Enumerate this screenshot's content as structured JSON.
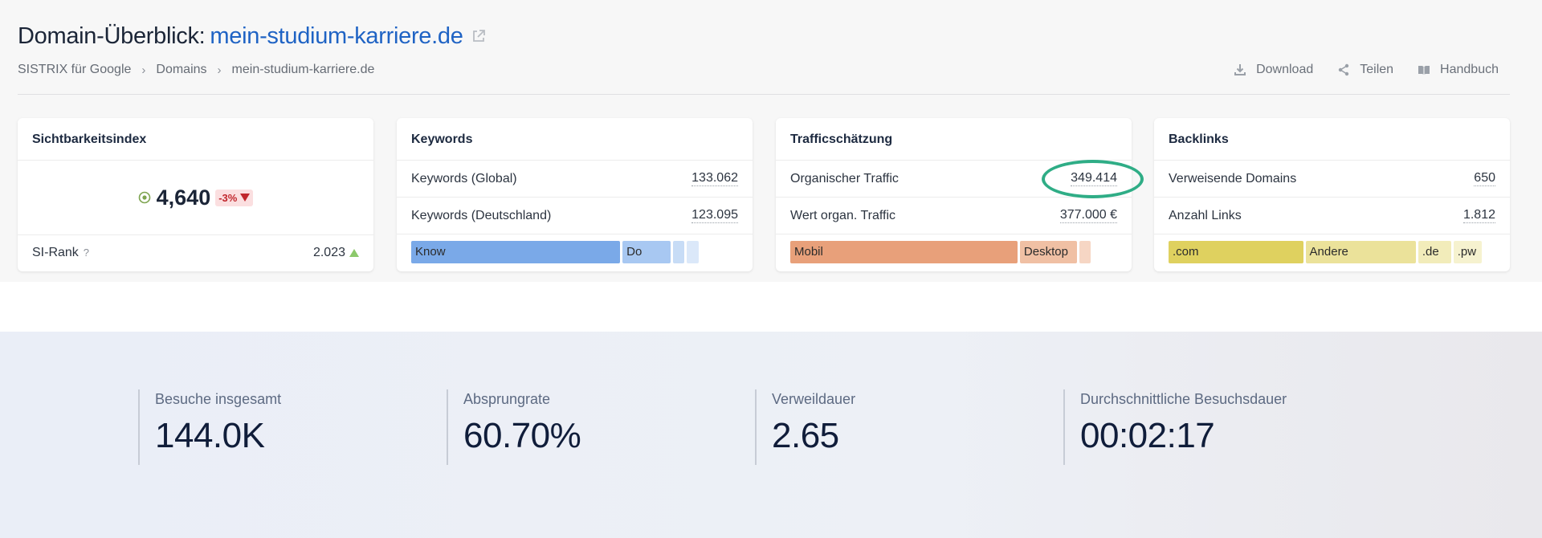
{
  "header": {
    "title_prefix": "Domain-Überblick:",
    "title_domain": "mein-studium-karriere.de"
  },
  "breadcrumb": [
    "SISTRIX für Google",
    "Domains",
    "mein-studium-karriere.de"
  ],
  "actions": {
    "download": "Download",
    "share": "Teilen",
    "handbook": "Handbuch"
  },
  "cards": {
    "sichtbarkeit": {
      "title": "Sichtbarkeitsindex",
      "value": "4,640",
      "change": "-3%",
      "rank_label": "SI-Rank",
      "rank_help": "?",
      "rank_value": "2.023"
    },
    "keywords": {
      "title": "Keywords",
      "rows": [
        {
          "label": "Keywords (Global)",
          "value": "133.062"
        },
        {
          "label": "Keywords (Deutschland)",
          "value": "123.095"
        }
      ],
      "bar": [
        {
          "label": "Know",
          "share": 0.675,
          "color": "#7aa9e8"
        },
        {
          "label": "Do",
          "share": 0.145,
          "color": "#a8c8f2"
        },
        {
          "label": "",
          "share": 0.025,
          "color": "#c7dcf6"
        },
        {
          "label": "",
          "share": 0.025,
          "color": "#dbe8f9"
        }
      ]
    },
    "traffic": {
      "title": "Trafficschätzung",
      "rows": [
        {
          "label": "Organischer Traffic",
          "value": "349.414"
        },
        {
          "label": "Wert organ. Traffic",
          "value": "377.000 €"
        }
      ],
      "bar": [
        {
          "label": "Mobil",
          "share": 0.72,
          "color": "#e8a07a"
        },
        {
          "label": "Desktop",
          "share": 0.17,
          "color": "#f0c0a4"
        },
        {
          "label": "",
          "share": 0.025,
          "color": "#f6d6c4"
        }
      ]
    },
    "backlinks": {
      "title": "Backlinks",
      "rows": [
        {
          "label": "Verweisende Domains",
          "value": "650"
        },
        {
          "label": "Anzahl Links",
          "value": "1.812"
        }
      ],
      "bar": [
        {
          "label": ".com",
          "share": 0.43,
          "color": "#dfd15f"
        },
        {
          "label": "Andere",
          "share": 0.35,
          "color": "#ebe29a"
        },
        {
          "label": ".de",
          "share": 0.095,
          "color": "#f2ecba"
        },
        {
          "label": ".pw",
          "share": 0.08,
          "color": "#f6f2cf"
        }
      ]
    }
  },
  "stats": [
    {
      "label": "Besuche insgesamt",
      "value": "144.0K"
    },
    {
      "label": "Absprungrate",
      "value": "60.70%"
    },
    {
      "label": "Verweildauer",
      "value": "2.65"
    },
    {
      "label": "Durchschnittliche Besuchsdauer",
      "value": "00:02:17"
    }
  ],
  "colors": {
    "brand_link": "#1f63c4",
    "highlight": "#2fad86",
    "negative": "#c1272d",
    "positive": "#8cc96b"
  }
}
